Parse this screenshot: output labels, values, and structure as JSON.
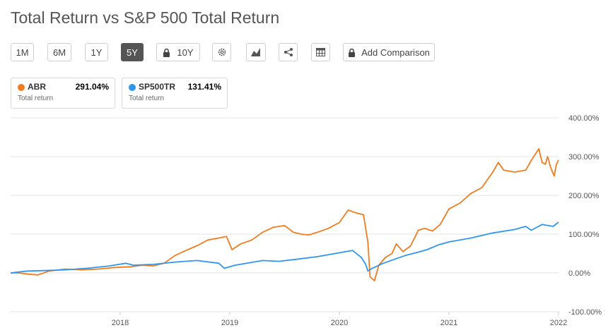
{
  "title": "Total Return vs S&P 500 Total Return",
  "toolbar": {
    "range_buttons": [
      "1M",
      "6M",
      "1Y",
      "5Y"
    ],
    "active_range": "5Y",
    "locked_10y": "10Y",
    "add_comparison": "Add Comparison",
    "icons": [
      "gear-icon",
      "chart-type-icon",
      "share-icon",
      "table-icon",
      "lock-icon"
    ]
  },
  "legend_cards": [
    {
      "symbol": "ABR",
      "value": "291.04%",
      "sub": "Total return",
      "color": "#f07c1e"
    },
    {
      "symbol": "SP500TR",
      "value": "131.41%",
      "sub": "Total return",
      "color": "#2f96f0"
    }
  ],
  "chart_data": {
    "type": "line",
    "title": "Total Return vs S&P 500 Total Return",
    "xlabel": "",
    "ylabel": "",
    "x_ticks": [
      "2018",
      "2019",
      "2020",
      "2021",
      "2022"
    ],
    "y_ticks": [
      "400.00%",
      "300.00%",
      "200.00%",
      "100.00%",
      "0.00%",
      "-100.00%"
    ],
    "ylim": [
      -100,
      400
    ],
    "xlim": [
      2017.0,
      2022.0
    ],
    "grid": true,
    "legend_position": "top-left",
    "series": [
      {
        "name": "ABR",
        "color": "#f07c1e",
        "points": [
          [
            2017.0,
            0
          ],
          [
            2017.08,
            0
          ],
          [
            2017.15,
            -3
          ],
          [
            2017.25,
            -5
          ],
          [
            2017.35,
            5
          ],
          [
            2017.5,
            10
          ],
          [
            2017.65,
            8
          ],
          [
            2017.8,
            10
          ],
          [
            2017.95,
            14
          ],
          [
            2018.1,
            16
          ],
          [
            2018.2,
            20
          ],
          [
            2018.3,
            18
          ],
          [
            2018.4,
            25
          ],
          [
            2018.5,
            45
          ],
          [
            2018.6,
            58
          ],
          [
            2018.7,
            70
          ],
          [
            2018.8,
            85
          ],
          [
            2018.9,
            90
          ],
          [
            2018.97,
            94
          ],
          [
            2019.02,
            60
          ],
          [
            2019.1,
            75
          ],
          [
            2019.2,
            85
          ],
          [
            2019.3,
            105
          ],
          [
            2019.4,
            118
          ],
          [
            2019.5,
            122
          ],
          [
            2019.58,
            105
          ],
          [
            2019.65,
            100
          ],
          [
            2019.72,
            98
          ],
          [
            2019.8,
            105
          ],
          [
            2019.9,
            115
          ],
          [
            2020.0,
            130
          ],
          [
            2020.08,
            162
          ],
          [
            2020.15,
            155
          ],
          [
            2020.22,
            150
          ],
          [
            2020.26,
            80
          ],
          [
            2020.28,
            -10
          ],
          [
            2020.32,
            -20
          ],
          [
            2020.36,
            20
          ],
          [
            2020.42,
            40
          ],
          [
            2020.48,
            50
          ],
          [
            2020.52,
            75
          ],
          [
            2020.58,
            55
          ],
          [
            2020.65,
            70
          ],
          [
            2020.72,
            110
          ],
          [
            2020.78,
            115
          ],
          [
            2020.85,
            108
          ],
          [
            2020.92,
            125
          ],
          [
            2021.0,
            165
          ],
          [
            2021.1,
            180
          ],
          [
            2021.2,
            205
          ],
          [
            2021.3,
            220
          ],
          [
            2021.4,
            260
          ],
          [
            2021.45,
            285
          ],
          [
            2021.5,
            265
          ],
          [
            2021.6,
            260
          ],
          [
            2021.7,
            265
          ],
          [
            2021.75,
            290
          ],
          [
            2021.82,
            320
          ],
          [
            2021.85,
            285
          ],
          [
            2021.88,
            280
          ],
          [
            2021.9,
            300
          ],
          [
            2021.93,
            270
          ],
          [
            2021.96,
            250
          ],
          [
            2021.98,
            280
          ],
          [
            2022.0,
            291
          ]
        ]
      },
      {
        "name": "SP500TR",
        "color": "#2f96f0",
        "points": [
          [
            2017.0,
            0
          ],
          [
            2017.15,
            5
          ],
          [
            2017.3,
            6
          ],
          [
            2017.5,
            8
          ],
          [
            2017.7,
            12
          ],
          [
            2017.9,
            18
          ],
          [
            2018.05,
            25
          ],
          [
            2018.12,
            20
          ],
          [
            2018.3,
            22
          ],
          [
            2018.5,
            28
          ],
          [
            2018.7,
            32
          ],
          [
            2018.9,
            25
          ],
          [
            2018.95,
            12
          ],
          [
            2019.05,
            20
          ],
          [
            2019.3,
            32
          ],
          [
            2019.45,
            30
          ],
          [
            2019.6,
            35
          ],
          [
            2019.8,
            42
          ],
          [
            2020.0,
            52
          ],
          [
            2020.12,
            58
          ],
          [
            2020.2,
            40
          ],
          [
            2020.24,
            22
          ],
          [
            2020.26,
            5
          ],
          [
            2020.3,
            12
          ],
          [
            2020.4,
            25
          ],
          [
            2020.5,
            35
          ],
          [
            2020.6,
            45
          ],
          [
            2020.7,
            52
          ],
          [
            2020.8,
            60
          ],
          [
            2020.9,
            72
          ],
          [
            2021.0,
            80
          ],
          [
            2021.2,
            90
          ],
          [
            2021.4,
            103
          ],
          [
            2021.6,
            112
          ],
          [
            2021.7,
            120
          ],
          [
            2021.75,
            110
          ],
          [
            2021.85,
            125
          ],
          [
            2021.95,
            120
          ],
          [
            2022.0,
            131
          ]
        ]
      }
    ]
  }
}
